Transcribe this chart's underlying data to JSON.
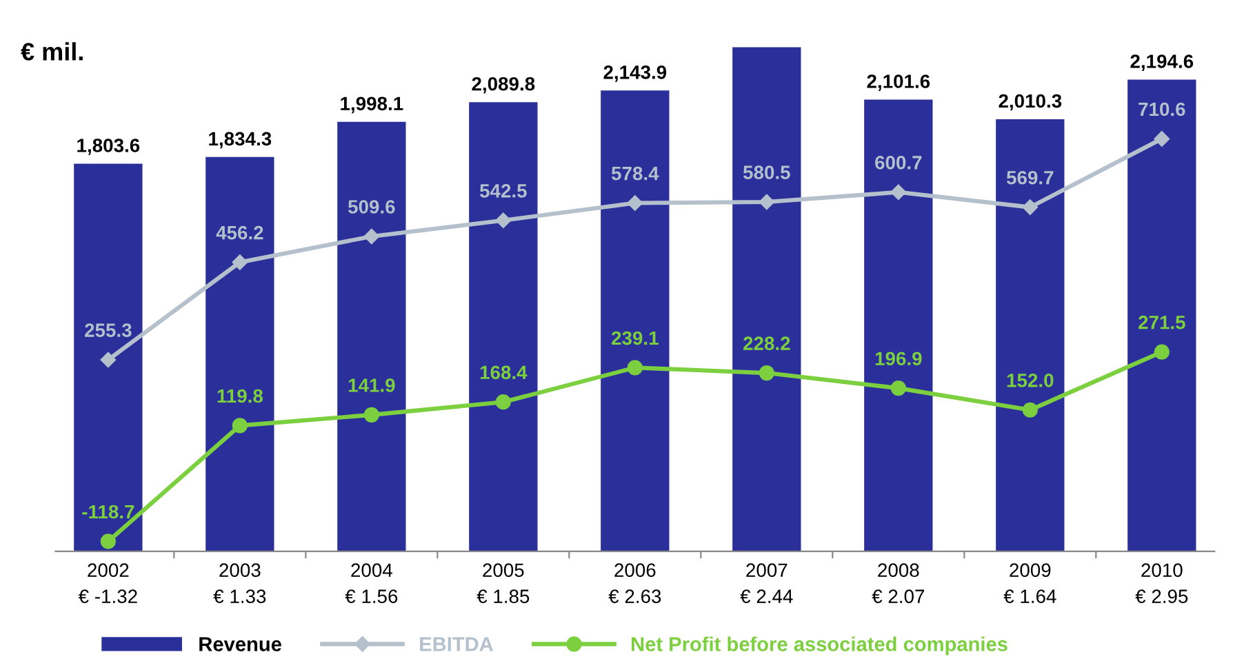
{
  "chart_data": {
    "type": "bar",
    "ylabel": "€ mil.",
    "categories": [
      "2002\n€ -1.32",
      "2003\n€ 1.33",
      "2004\n€ 1.56",
      "2005\n€ 1.85",
      "2006\n€ 2.63",
      "2007\n€ 2.44",
      "2008\n€ 2.07",
      "2009\n€ 1.64",
      "2010\n€ 2.95"
    ],
    "legend": "bottom",
    "grid": false,
    "series": [
      {
        "name": "Revenue",
        "color": "#2b2f9a",
        "values": [
          1803.6,
          1834.3,
          1998.1,
          2089.8,
          2143.9,
          2345,
          2101.6,
          2010.3,
          2194.6
        ],
        "value_labels": [
          "1,803.6",
          "1,834.3",
          "1,998.1",
          "2,089.8",
          "2,143.9",
          null,
          "2,101.6",
          "2,010.3",
          "2,194.6"
        ]
      },
      {
        "name": "EBITDA",
        "type": "line",
        "axis": "y2",
        "color": "#b4c0cc",
        "marker": "diamond",
        "values": [
          255.3,
          456.2,
          509.6,
          542.5,
          578.4,
          580.5,
          600.7,
          569.7,
          710.6
        ],
        "value_labels": [
          "255.3",
          "456.2",
          "509.6",
          "542.5",
          "578.4",
          "580.5",
          "600.7",
          "569.7",
          "710.6"
        ]
      },
      {
        "name": "Net Profit before associated companies",
        "type": "line",
        "axis": "y2",
        "color": "#7ccf3f",
        "marker": "circle",
        "values": [
          -118.7,
          119.8,
          141.9,
          168.4,
          239.1,
          228.2,
          196.9,
          152.0,
          271.5
        ],
        "value_labels": [
          "-118.7",
          "119.8",
          "141.9",
          "168.4",
          "239.1",
          "228.2",
          "196.9",
          "152.0",
          "271.5"
        ]
      }
    ]
  }
}
